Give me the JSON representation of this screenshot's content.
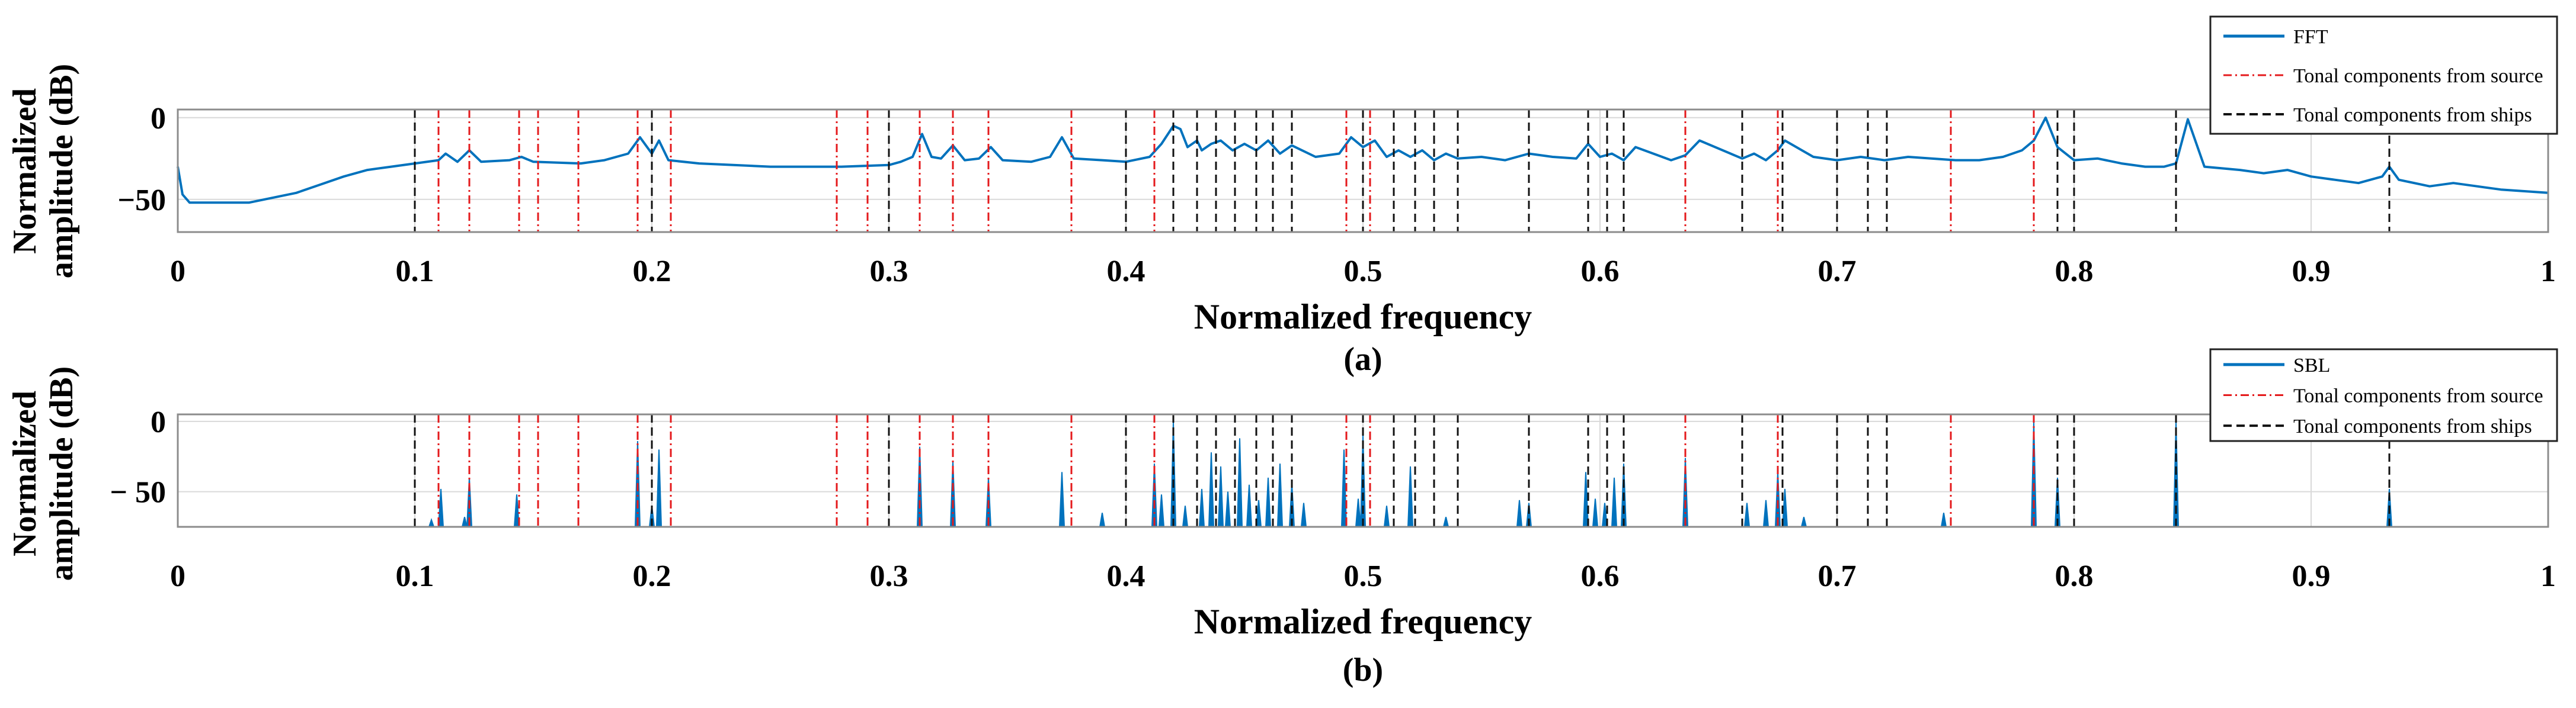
{
  "colors": {
    "signal": "#0072bd",
    "source_line": "#e41a1c",
    "ship_line": "#111111",
    "grid": "#d9d9d9",
    "axis": "#8c8c8c"
  },
  "chart_data": [
    {
      "id": "a",
      "type": "line",
      "caption": "(a)",
      "xlabel": "Normalized frequency",
      "ylabel": [
        "Normalized",
        "amplitude (dB)"
      ],
      "xlim": [
        0,
        1
      ],
      "ylim": [
        -70,
        5
      ],
      "xticks": [
        0,
        0.1,
        0.2,
        0.3,
        0.4,
        0.5,
        0.6,
        0.7,
        0.8,
        0.9,
        1
      ],
      "xtick_labels": [
        "0",
        "0.1",
        "0.2",
        "0.3",
        "0.4",
        "0.5",
        "0.6",
        "0.7",
        "0.8",
        "0.9",
        "1"
      ],
      "yticks": [
        0,
        -50
      ],
      "ytick_labels": [
        "0",
        "−50"
      ],
      "grid": true,
      "legend": {
        "position": "top-right",
        "entries": [
          {
            "label": "FFT",
            "style": "solid"
          },
          {
            "label": "Tonal components from source",
            "style": "dashdot"
          },
          {
            "label": "Tonal components from ships",
            "style": "dashed"
          }
        ]
      },
      "series": [
        {
          "name": "FFT",
          "x": [
            0,
            0.002,
            0.005,
            0.03,
            0.05,
            0.06,
            0.07,
            0.08,
            0.09,
            0.1,
            0.11,
            0.113,
            0.118,
            0.123,
            0.128,
            0.14,
            0.145,
            0.15,
            0.17,
            0.18,
            0.19,
            0.195,
            0.2,
            0.203,
            0.207,
            0.22,
            0.25,
            0.28,
            0.3,
            0.305,
            0.31,
            0.314,
            0.318,
            0.322,
            0.327,
            0.332,
            0.338,
            0.343,
            0.348,
            0.36,
            0.368,
            0.373,
            0.378,
            0.39,
            0.4,
            0.41,
            0.415,
            0.42,
            0.423,
            0.426,
            0.43,
            0.432,
            0.436,
            0.44,
            0.445,
            0.45,
            0.455,
            0.46,
            0.465,
            0.47,
            0.48,
            0.49,
            0.495,
            0.5,
            0.505,
            0.51,
            0.515,
            0.52,
            0.525,
            0.53,
            0.535,
            0.54,
            0.55,
            0.56,
            0.57,
            0.58,
            0.59,
            0.595,
            0.6,
            0.605,
            0.61,
            0.615,
            0.63,
            0.636,
            0.642,
            0.66,
            0.665,
            0.67,
            0.675,
            0.678,
            0.69,
            0.7,
            0.71,
            0.72,
            0.73,
            0.75,
            0.76,
            0.77,
            0.778,
            0.783,
            0.788,
            0.793,
            0.8,
            0.81,
            0.82,
            0.83,
            0.838,
            0.843,
            0.848,
            0.855,
            0.87,
            0.88,
            0.89,
            0.9,
            0.91,
            0.92,
            0.93,
            0.933,
            0.937,
            0.95,
            0.96,
            0.97,
            0.98,
            0.99,
            1.0
          ],
          "values": [
            -30,
            -47,
            -52,
            -52,
            -46,
            -41,
            -36,
            -32,
            -30,
            -28,
            -26,
            -22,
            -27,
            -20,
            -27,
            -26,
            -24,
            -27,
            -28,
            -26,
            -22,
            -12,
            -22,
            -14,
            -26,
            -28,
            -30,
            -30,
            -29,
            -27,
            -24,
            -10,
            -24,
            -25,
            -17,
            -26,
            -25,
            -18,
            -26,
            -27,
            -24,
            -12,
            -25,
            -26,
            -27,
            -24,
            -16,
            -5,
            -7,
            -18,
            -14,
            -20,
            -16,
            -14,
            -20,
            -16,
            -20,
            -14,
            -22,
            -17,
            -24,
            -22,
            -12,
            -18,
            -14,
            -24,
            -20,
            -24,
            -20,
            -26,
            -22,
            -25,
            -24,
            -26,
            -22,
            -24,
            -25,
            -16,
            -24,
            -22,
            -26,
            -18,
            -26,
            -23,
            -14,
            -25,
            -22,
            -26,
            -20,
            -14,
            -24,
            -26,
            -24,
            -26,
            -24,
            -26,
            -26,
            -24,
            -20,
            -14,
            0,
            -18,
            -26,
            -25,
            -28,
            -30,
            -30,
            -28,
            -1,
            -30,
            -32,
            -34,
            -32,
            -36,
            -38,
            -40,
            -36,
            -30,
            -38,
            -42,
            -40,
            -42,
            -44,
            -45,
            -46
          ]
        }
      ],
      "source_tones": [
        0.11,
        0.123,
        0.144,
        0.152,
        0.169,
        0.194,
        0.208,
        0.278,
        0.291,
        0.313,
        0.327,
        0.342,
        0.377,
        0.412,
        0.493,
        0.503,
        0.636,
        0.675,
        0.748,
        0.783
      ],
      "ship_tones": [
        0.1,
        0.2,
        0.3,
        0.4,
        0.42,
        0.43,
        0.438,
        0.446,
        0.455,
        0.462,
        0.47,
        0.5,
        0.513,
        0.522,
        0.53,
        0.54,
        0.57,
        0.595,
        0.603,
        0.61,
        0.66,
        0.677,
        0.7,
        0.713,
        0.721,
        0.793,
        0.8,
        0.843,
        0.933
      ]
    },
    {
      "id": "b",
      "type": "line",
      "caption": "(b)",
      "xlabel": "Normalized frequency",
      "ylabel": [
        "Normalized",
        "amplitude (dB)"
      ],
      "xlim": [
        0,
        1
      ],
      "ylim": [
        -75,
        5
      ],
      "xticks": [
        0,
        0.1,
        0.2,
        0.3,
        0.4,
        0.5,
        0.6,
        0.7,
        0.8,
        0.9,
        1
      ],
      "xtick_labels": [
        "0",
        "0.1",
        "0.2",
        "0.3",
        "0.4",
        "0.5",
        "0.6",
        "0.7",
        "0.8",
        "0.9",
        "1"
      ],
      "yticks": [
        0,
        -50
      ],
      "ytick_labels": [
        "0",
        "− 50"
      ],
      "grid": true,
      "legend": {
        "position": "top-right",
        "entries": [
          {
            "label": "SBL",
            "style": "solid"
          },
          {
            "label": "Tonal components from source",
            "style": "dashdot"
          },
          {
            "label": "Tonal components from ships",
            "style": "dashed"
          }
        ]
      },
      "series": [
        {
          "name": "SBL",
          "spikes": [
            {
              "x": 0.107,
              "y": -70
            },
            {
              "x": 0.111,
              "y": -48
            },
            {
              "x": 0.121,
              "y": -68
            },
            {
              "x": 0.123,
              "y": -40
            },
            {
              "x": 0.143,
              "y": -52
            },
            {
              "x": 0.194,
              "y": -14
            },
            {
              "x": 0.2,
              "y": -60
            },
            {
              "x": 0.203,
              "y": -20
            },
            {
              "x": 0.313,
              "y": -18
            },
            {
              "x": 0.327,
              "y": -28
            },
            {
              "x": 0.342,
              "y": -40
            },
            {
              "x": 0.373,
              "y": -36
            },
            {
              "x": 0.39,
              "y": -65
            },
            {
              "x": 0.412,
              "y": -30
            },
            {
              "x": 0.415,
              "y": -52
            },
            {
              "x": 0.42,
              "y": 0
            },
            {
              "x": 0.425,
              "y": -60
            },
            {
              "x": 0.432,
              "y": -48
            },
            {
              "x": 0.436,
              "y": -22
            },
            {
              "x": 0.44,
              "y": -32
            },
            {
              "x": 0.443,
              "y": -50
            },
            {
              "x": 0.448,
              "y": -12
            },
            {
              "x": 0.452,
              "y": -45
            },
            {
              "x": 0.456,
              "y": -56
            },
            {
              "x": 0.46,
              "y": -40
            },
            {
              "x": 0.465,
              "y": -30
            },
            {
              "x": 0.47,
              "y": -44
            },
            {
              "x": 0.475,
              "y": -58
            },
            {
              "x": 0.492,
              "y": -20
            },
            {
              "x": 0.498,
              "y": -55
            },
            {
              "x": 0.5,
              "y": -10
            },
            {
              "x": 0.51,
              "y": -60
            },
            {
              "x": 0.52,
              "y": -32
            },
            {
              "x": 0.535,
              "y": -68
            },
            {
              "x": 0.566,
              "y": -56
            },
            {
              "x": 0.57,
              "y": -58
            },
            {
              "x": 0.594,
              "y": -36
            },
            {
              "x": 0.598,
              "y": -55
            },
            {
              "x": 0.602,
              "y": -58
            },
            {
              "x": 0.606,
              "y": -40
            },
            {
              "x": 0.61,
              "y": -30
            },
            {
              "x": 0.636,
              "y": -26
            },
            {
              "x": 0.662,
              "y": -58
            },
            {
              "x": 0.67,
              "y": -56
            },
            {
              "x": 0.675,
              "y": -36
            },
            {
              "x": 0.678,
              "y": -48
            },
            {
              "x": 0.686,
              "y": -68
            },
            {
              "x": 0.745,
              "y": -65
            },
            {
              "x": 0.783,
              "y": 0
            },
            {
              "x": 0.793,
              "y": -40
            },
            {
              "x": 0.843,
              "y": 0
            },
            {
              "x": 0.933,
              "y": -48
            }
          ]
        }
      ],
      "source_tones": [
        0.11,
        0.123,
        0.144,
        0.152,
        0.169,
        0.194,
        0.208,
        0.278,
        0.291,
        0.313,
        0.327,
        0.342,
        0.377,
        0.412,
        0.493,
        0.503,
        0.636,
        0.675,
        0.748,
        0.783
      ],
      "ship_tones": [
        0.1,
        0.2,
        0.3,
        0.4,
        0.42,
        0.43,
        0.438,
        0.446,
        0.455,
        0.462,
        0.47,
        0.5,
        0.513,
        0.522,
        0.53,
        0.54,
        0.57,
        0.595,
        0.603,
        0.61,
        0.66,
        0.677,
        0.7,
        0.713,
        0.721,
        0.793,
        0.8,
        0.843,
        0.933
      ]
    }
  ]
}
